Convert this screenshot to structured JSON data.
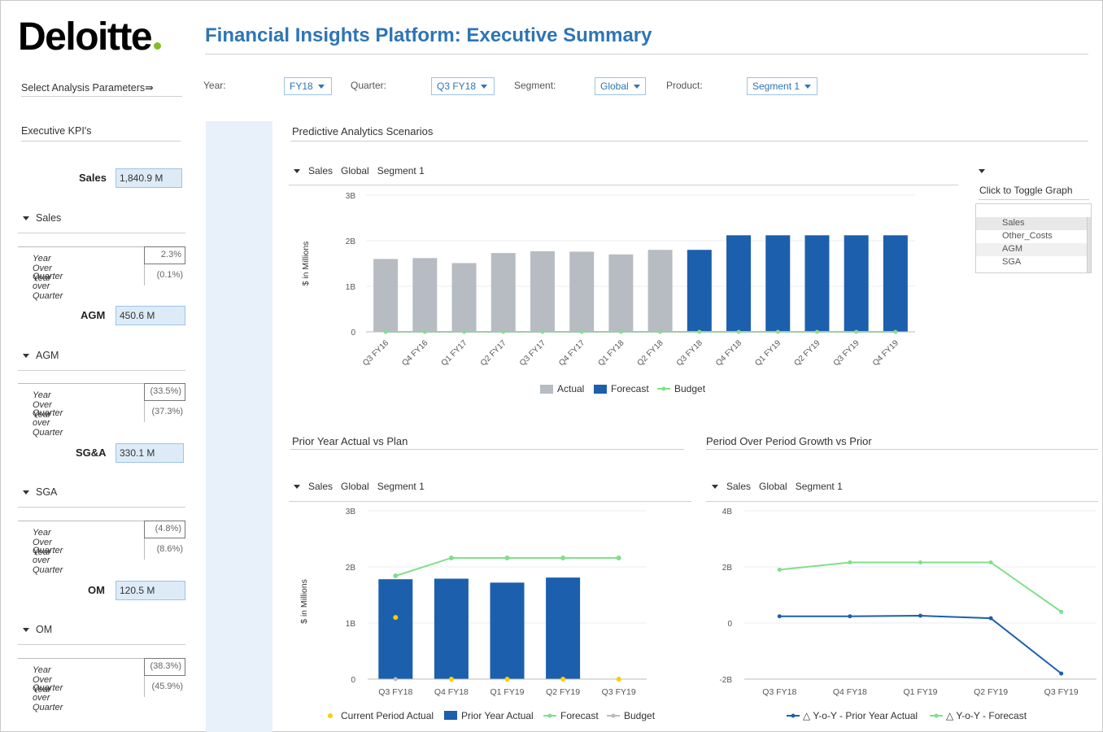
{
  "header": {
    "logo_text": "Deloitte",
    "logo_dot_color": "#86bc25",
    "title": "Financial Insights Platform: Executive Summary"
  },
  "params": {
    "heading": "Select Analysis Parameters⇛",
    "year_label": "Year:",
    "year_value": "FY18",
    "quarter_label": "Quarter:",
    "quarter_value": "Q3 FY18",
    "segment_label": "Segment:",
    "segment_value": "Global",
    "product_label": "Product:",
    "product_value": "Segment 1"
  },
  "kpis": {
    "heading": "Executive KPI's",
    "items": [
      {
        "label": "Sales",
        "value": "1,840.9 M",
        "group": "Sales",
        "yoy_label": "Year Over Year",
        "yoy": "2.3%",
        "qoq_label": "Quarter over Quarter",
        "qoq": "(0.1%)"
      },
      {
        "label": "AGM",
        "value": "450.6 M",
        "group": "AGM",
        "yoy_label": "Year Over Year",
        "yoy": "(33.5%)",
        "qoq_label": "Quarter over Quarter",
        "qoq": "(37.3%)"
      },
      {
        "label": "SG&A",
        "value": "330.1 M",
        "group": "SGA",
        "yoy_label": "Year Over Year",
        "yoy": "(4.8%)",
        "qoq_label": "Quarter over Quarter",
        "qoq": "(8.6%)"
      },
      {
        "label": "OM",
        "value": "120.5 M",
        "group": "OM",
        "yoy_label": "Year Over Year",
        "yoy": "(38.3%)",
        "qoq_label": "Quarter over Quarter",
        "qoq": "(45.9%)"
      }
    ]
  },
  "breadcrumb": {
    "measure": "Sales",
    "segment": "Global",
    "product": "Segment 1"
  },
  "toggle": {
    "label": "Click to Toggle Graph",
    "options": [
      "Sales",
      "Other_Costs",
      "AGM",
      "SGA"
    ]
  },
  "colors": {
    "actual": "#b7bcc2",
    "forecast": "#1c5fad",
    "budget": "#7fe08a",
    "current": "#ffcc00",
    "accent": "#2e75b6"
  },
  "chart_data": [
    {
      "type": "bar",
      "title": "Predictive Analytics Scenarios",
      "ylabel": "$ in Millions",
      "ylim": [
        0,
        3
      ],
      "yticks": [
        "0",
        "1B",
        "2B",
        "3B"
      ],
      "categories": [
        "Q3 FY16",
        "Q4 FY16",
        "Q1 FY17",
        "Q2 FY17",
        "Q3 FY17",
        "Q4 FY17",
        "Q1 FY18",
        "Q2 FY18",
        "Q3 FY18",
        "Q4 FY18",
        "Q1 FY19",
        "Q2 FY19",
        "Q3 FY19",
        "Q4 FY19"
      ],
      "series": [
        {
          "name": "Actual",
          "values": [
            1.6,
            1.62,
            1.51,
            1.73,
            1.77,
            1.76,
            1.7,
            1.8,
            null,
            null,
            null,
            null,
            null,
            null
          ]
        },
        {
          "name": "Forecast",
          "values": [
            null,
            null,
            null,
            null,
            null,
            null,
            null,
            null,
            1.8,
            2.12,
            2.12,
            2.12,
            2.12,
            2.12
          ]
        },
        {
          "name": "Budget",
          "values": [
            0,
            0,
            0,
            0,
            0,
            0,
            0,
            0,
            0,
            0,
            0,
            0,
            0,
            0
          ]
        }
      ],
      "legend": [
        "Actual",
        "Forecast",
        "Budget"
      ]
    },
    {
      "type": "bar",
      "title": "Prior Year Actual vs Plan",
      "ylabel": "$ in Millions",
      "ylim": [
        0,
        3
      ],
      "yticks": [
        "0",
        "1B",
        "2B",
        "3B"
      ],
      "categories": [
        "Q3 FY18",
        "Q4 FY18",
        "Q1 FY19",
        "Q2 FY19",
        "Q3 FY19"
      ],
      "series": [
        {
          "name": "Current Period Actual",
          "values": [
            1.1,
            0,
            0,
            0,
            0
          ]
        },
        {
          "name": "Prior Year Actual",
          "values": [
            1.78,
            1.79,
            1.72,
            1.81,
            null
          ]
        },
        {
          "name": "Forecast",
          "values": [
            1.84,
            2.16,
            2.16,
            2.16,
            2.16
          ]
        },
        {
          "name": "Budget",
          "values": [
            0,
            0,
            0,
            0,
            0
          ]
        }
      ],
      "legend": [
        "Current Period Actual",
        "Prior Year Actual",
        "Forecast",
        "Budget"
      ]
    },
    {
      "type": "line",
      "title": "Period Over Period Growth vs Prior",
      "ylim": [
        -2,
        4
      ],
      "yticks": [
        "-2B",
        "0",
        "2B",
        "4B"
      ],
      "categories": [
        "Q3 FY18",
        "Q4 FY18",
        "Q1 FY19",
        "Q2 FY19",
        "Q3 FY19"
      ],
      "series": [
        {
          "name": "△ Y-o-Y - Prior Year Actual",
          "values": [
            0.24,
            0.24,
            0.26,
            0.17,
            -1.8
          ]
        },
        {
          "name": "△ Y-o-Y - Forecast",
          "values": [
            1.9,
            2.16,
            2.16,
            2.16,
            0.4
          ]
        }
      ],
      "legend": [
        "△ Y-o-Y - Prior Year Actual",
        "△ Y-o-Y - Forecast"
      ]
    }
  ]
}
